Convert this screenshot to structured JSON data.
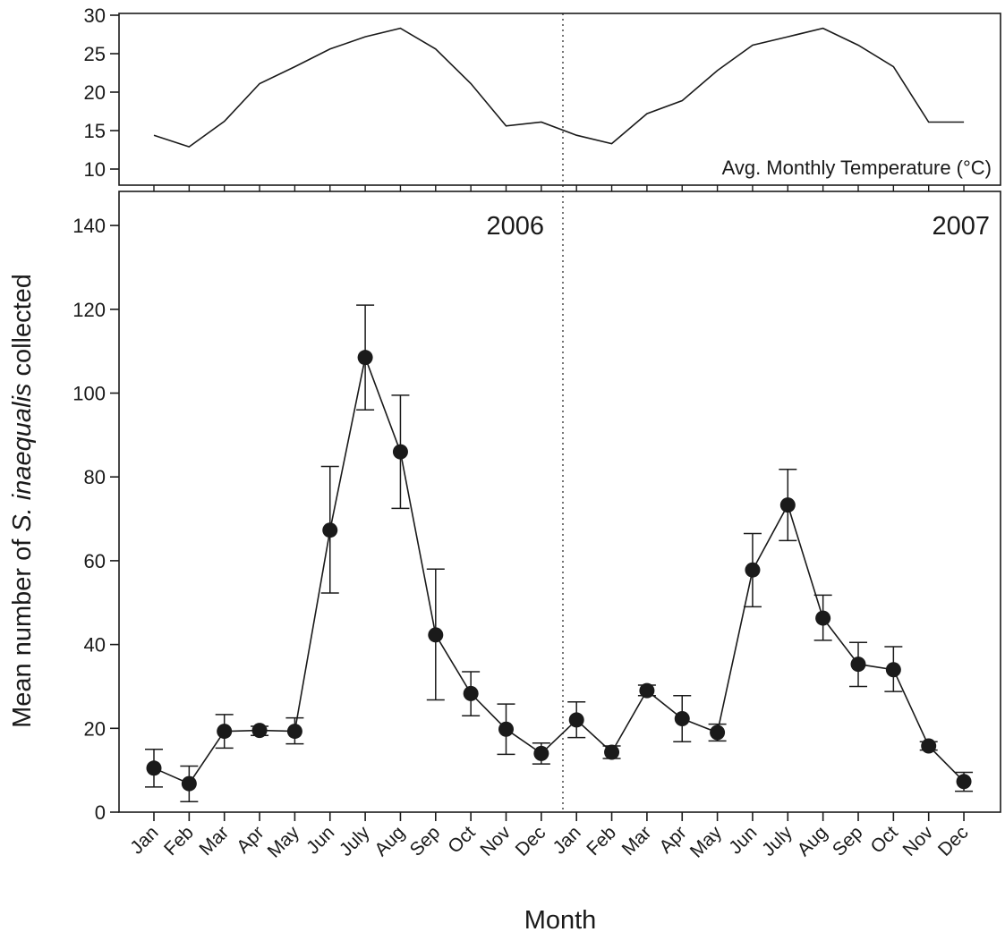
{
  "chart_data": [
    {
      "type": "line",
      "panel": "temperature",
      "annotation": "Avg. Monthly Temperature (°C)",
      "x": [
        "Jan",
        "Feb",
        "Mar",
        "Apr",
        "May",
        "Jun",
        "July",
        "Aug",
        "Sep",
        "Oct",
        "Nov",
        "Dec",
        "Jan",
        "Feb",
        "Mar",
        "Apr",
        "May",
        "Jun",
        "July",
        "Aug",
        "Sep",
        "Oct",
        "Nov",
        "Dec"
      ],
      "series": [
        {
          "values": [
            14.4,
            12.9,
            16.2,
            21.1,
            23.3,
            25.6,
            27.2,
            28.3,
            25.6,
            21.1,
            15.6,
            16.1,
            14.4,
            13.3,
            17.2,
            18.9,
            22.8,
            26.1,
            27.2,
            28.3,
            26.1,
            23.3,
            16.1,
            16.1
          ]
        }
      ],
      "ylim": [
        8,
        30
      ],
      "yticks": [
        10,
        15,
        20,
        25,
        30
      ],
      "grid": false
    },
    {
      "type": "line",
      "panel": "abundance",
      "ylabel_prefix": "Mean number of ",
      "ylabel_italic": "S. inaequalis",
      "ylabel_suffix": " collected",
      "xlabel": "Month",
      "year_labels": [
        "2006",
        "2007"
      ],
      "x": [
        "Jan",
        "Feb",
        "Mar",
        "Apr",
        "May",
        "Jun",
        "July",
        "Aug",
        "Sep",
        "Oct",
        "Nov",
        "Dec",
        "Jan",
        "Feb",
        "Mar",
        "Apr",
        "May",
        "Jun",
        "July",
        "Aug",
        "Sep",
        "Oct",
        "Nov",
        "Dec"
      ],
      "series": [
        {
          "values": [
            10.5,
            6.8,
            19.3,
            19.5,
            19.3,
            67.3,
            108.5,
            86,
            42.3,
            28.3,
            19.8,
            14,
            22,
            14.3,
            29,
            22.3,
            19,
            57.8,
            73.3,
            46.3,
            35.3,
            34,
            15.8,
            7.3
          ],
          "error_low": [
            6,
            2.5,
            15.3,
            18.3,
            16.3,
            52.3,
            96,
            72.5,
            26.8,
            23,
            13.8,
            11.5,
            17.8,
            12.8,
            27.8,
            16.8,
            17,
            49,
            64.8,
            41,
            30,
            28.8,
            14.8,
            5
          ],
          "error_high": [
            15,
            11,
            23.3,
            20.5,
            22.5,
            82.5,
            121,
            99.5,
            58,
            33.5,
            25.8,
            16.5,
            26.3,
            15.8,
            30.3,
            27.8,
            21,
            66.5,
            81.8,
            51.8,
            40.5,
            39.5,
            16.8,
            9.5
          ]
        }
      ],
      "ylim": [
        0,
        150
      ],
      "yticks": [
        0,
        20,
        40,
        60,
        80,
        100,
        120,
        140
      ],
      "grid": false
    }
  ]
}
